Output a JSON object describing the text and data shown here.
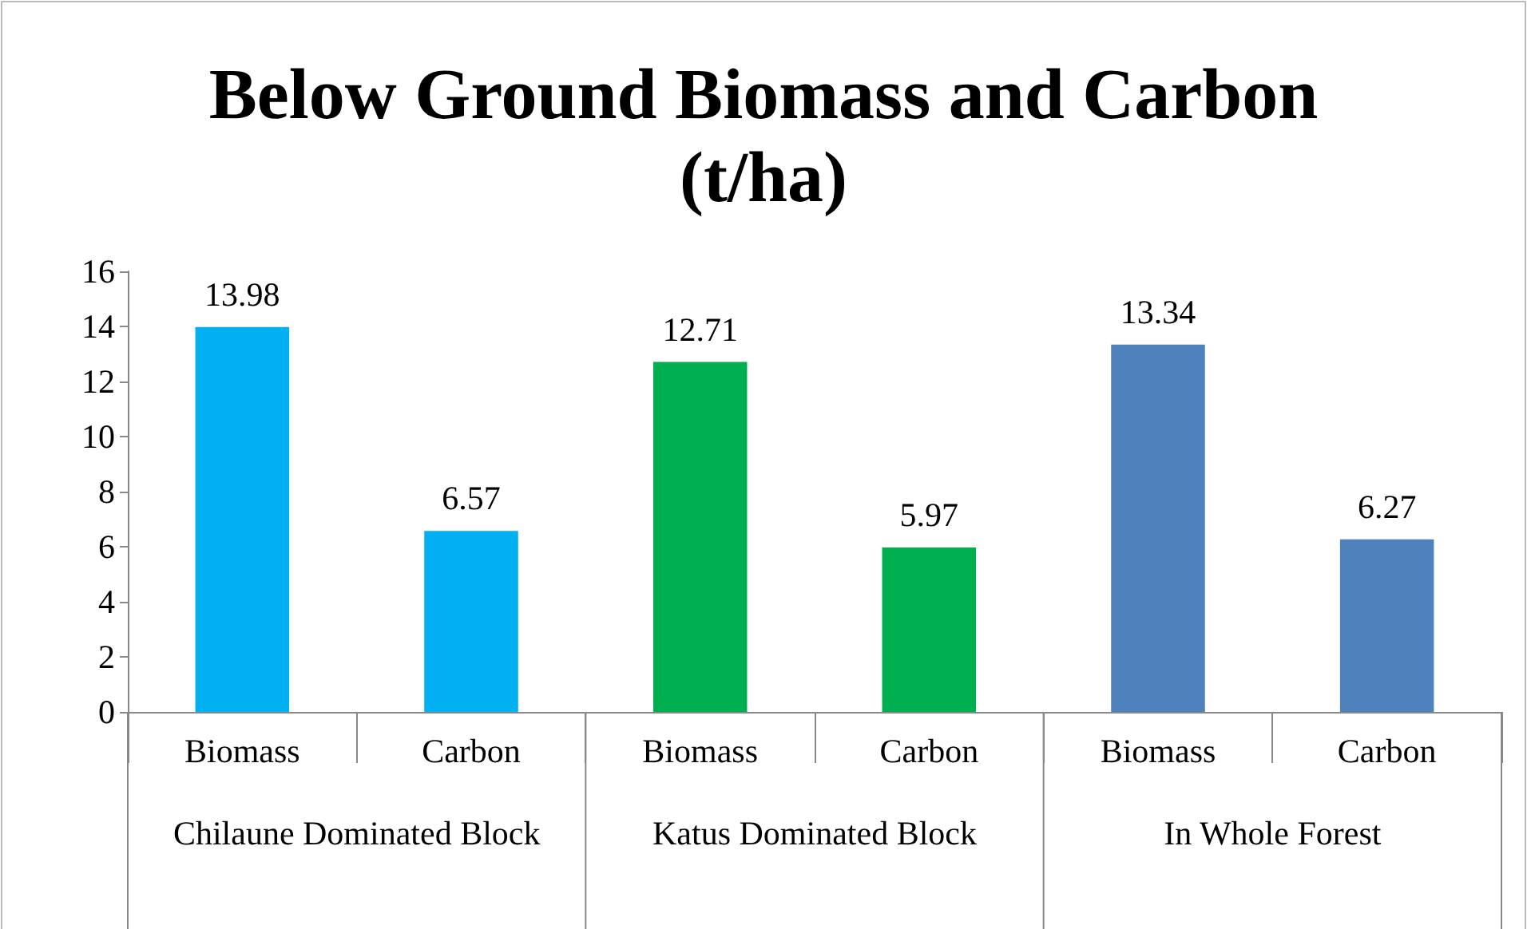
{
  "chart_data": {
    "type": "bar",
    "title": "Below Ground Biomass and Carbon\n(t/ha)",
    "categories": [
      "Biomass",
      "Carbon",
      "Biomass",
      "Carbon",
      "Biomass",
      "Carbon"
    ],
    "values": [
      13.98,
      6.57,
      12.71,
      5.97,
      13.34,
      6.27
    ],
    "colors": [
      "#00b0f0",
      "#00b0f0",
      "#00b050",
      "#00b050",
      "#4f81bd",
      "#4f81bd"
    ],
    "annotations": [
      "Chilaune Dominated Block",
      "Katus Dominated Block",
      "In Whole Forest"
    ],
    "ylim": [
      0,
      16
    ],
    "yticks": [
      0,
      2,
      4,
      6,
      8,
      10,
      12,
      14,
      16
    ],
    "data_labels": true,
    "grid": false
  }
}
